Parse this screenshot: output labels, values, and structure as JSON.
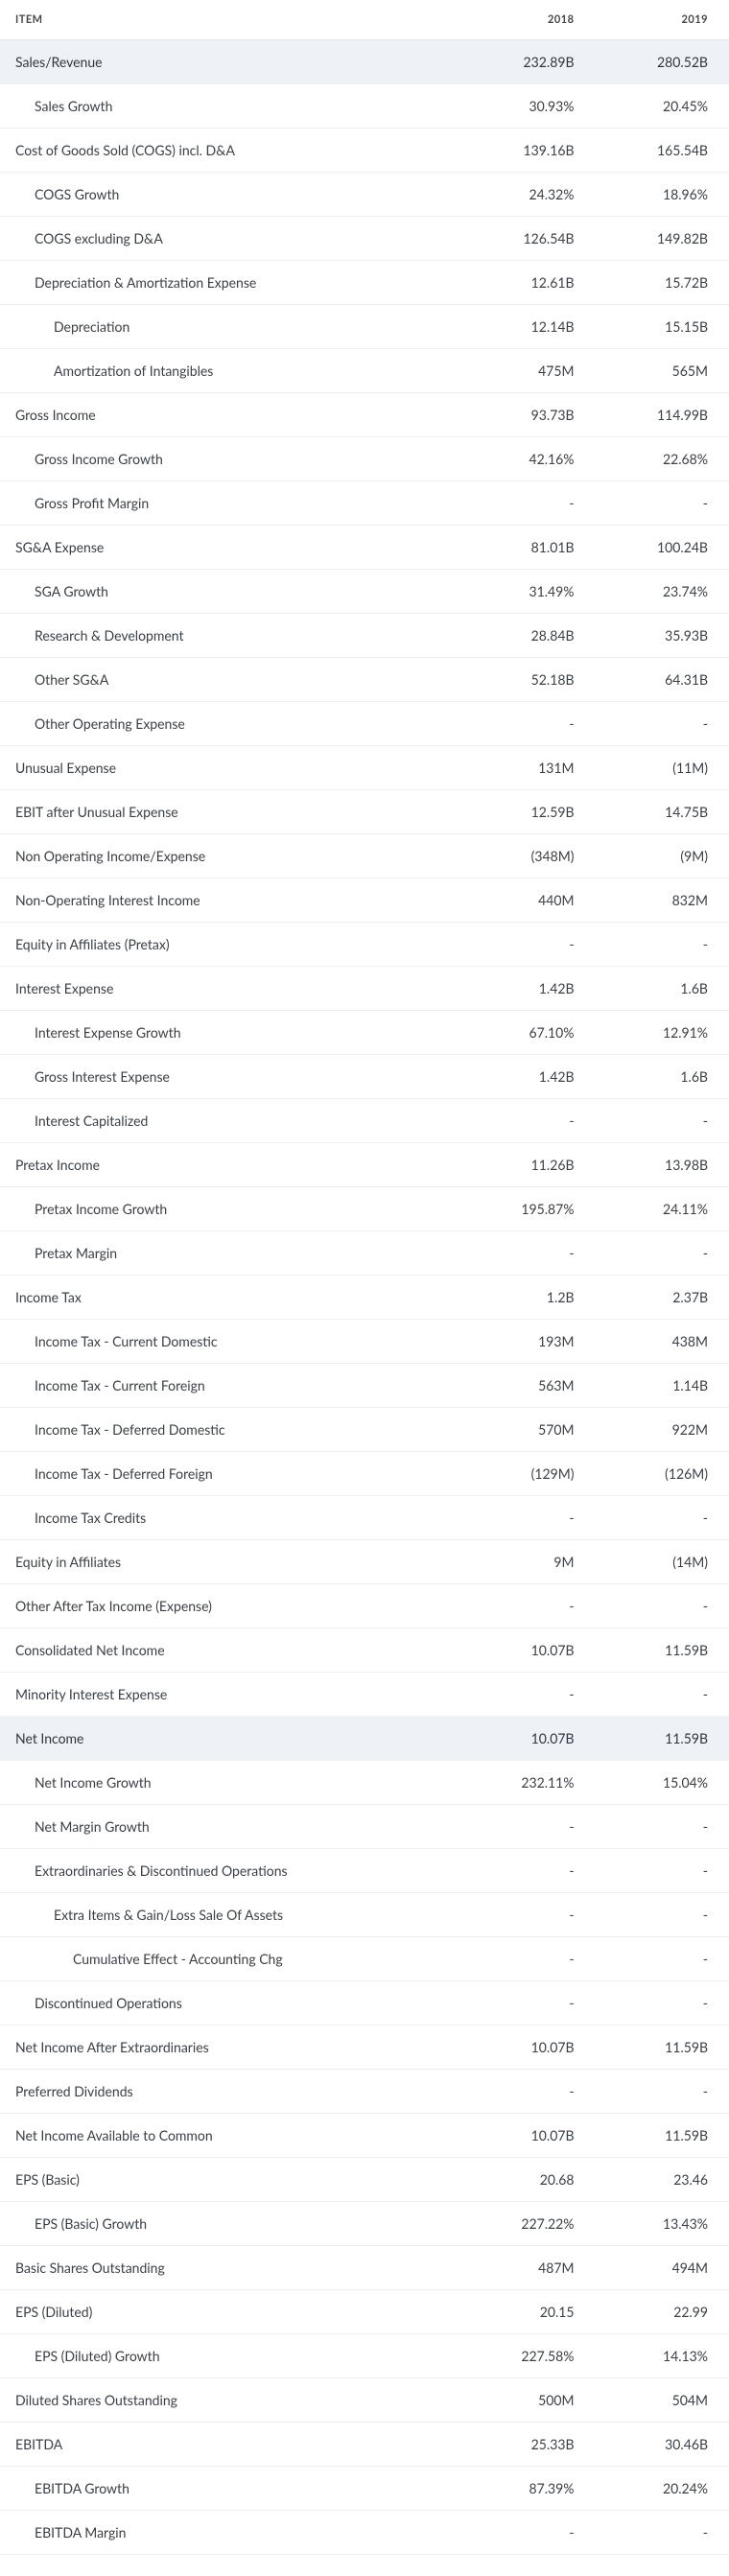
{
  "columns": [
    "ITEM",
    "2018",
    "2019"
  ],
  "colors": {
    "positive": "#2e8b57",
    "negative": "#c0392b",
    "highlight_bg": "#eef2f7",
    "border": "#eef1f4",
    "text": "#3a3f45"
  },
  "rows": [
    {
      "label": "Sales/Revenue",
      "indent": 0,
      "highlight": true,
      "v": [
        [
          "232.89B",
          ""
        ],
        [
          "280.52B",
          ""
        ]
      ]
    },
    {
      "label": "Sales Growth",
      "indent": 1,
      "v": [
        [
          "30.93%",
          "pos"
        ],
        [
          "20.45%",
          "pos"
        ]
      ]
    },
    {
      "label": "Cost of Goods Sold (COGS) incl. D&A",
      "indent": 0,
      "v": [
        [
          "139.16B",
          ""
        ],
        [
          "165.54B",
          ""
        ]
      ]
    },
    {
      "label": "COGS Growth",
      "indent": 1,
      "v": [
        [
          "24.32%",
          "pos"
        ],
        [
          "18.96%",
          "pos"
        ]
      ]
    },
    {
      "label": "COGS excluding D&A",
      "indent": 1,
      "v": [
        [
          "126.54B",
          ""
        ],
        [
          "149.82B",
          ""
        ]
      ]
    },
    {
      "label": "Depreciation & Amortization Expense",
      "indent": 1,
      "v": [
        [
          "12.61B",
          ""
        ],
        [
          "15.72B",
          ""
        ]
      ]
    },
    {
      "label": "Depreciation",
      "indent": 2,
      "v": [
        [
          "12.14B",
          ""
        ],
        [
          "15.15B",
          ""
        ]
      ]
    },
    {
      "label": "Amortization of Intangibles",
      "indent": 2,
      "v": [
        [
          "475M",
          ""
        ],
        [
          "565M",
          ""
        ]
      ]
    },
    {
      "label": "Gross Income",
      "indent": 0,
      "v": [
        [
          "93.73B",
          ""
        ],
        [
          "114.99B",
          ""
        ]
      ]
    },
    {
      "label": "Gross Income Growth",
      "indent": 1,
      "v": [
        [
          "42.16%",
          "pos"
        ],
        [
          "22.68%",
          "pos"
        ]
      ]
    },
    {
      "label": "Gross Profit Margin",
      "indent": 1,
      "v": [
        [
          "-",
          ""
        ],
        [
          "-",
          ""
        ]
      ]
    },
    {
      "label": "SG&A Expense",
      "indent": 0,
      "v": [
        [
          "81.01B",
          ""
        ],
        [
          "100.24B",
          ""
        ]
      ]
    },
    {
      "label": "SGA Growth",
      "indent": 1,
      "v": [
        [
          "31.49%",
          "pos"
        ],
        [
          "23.74%",
          "pos"
        ]
      ]
    },
    {
      "label": "Research & Development",
      "indent": 1,
      "v": [
        [
          "28.84B",
          ""
        ],
        [
          "35.93B",
          ""
        ]
      ]
    },
    {
      "label": "Other SG&A",
      "indent": 1,
      "v": [
        [
          "52.18B",
          ""
        ],
        [
          "64.31B",
          ""
        ]
      ]
    },
    {
      "label": "Other Operating Expense",
      "indent": 1,
      "v": [
        [
          "-",
          ""
        ],
        [
          "-",
          ""
        ]
      ]
    },
    {
      "label": "Unusual Expense",
      "indent": 0,
      "v": [
        [
          "131M",
          ""
        ],
        [
          "(11M)",
          "neg"
        ]
      ]
    },
    {
      "label": "EBIT after Unusual Expense",
      "indent": 0,
      "v": [
        [
          "12.59B",
          ""
        ],
        [
          "14.75B",
          ""
        ]
      ]
    },
    {
      "label": "Non Operating Income/Expense",
      "indent": 0,
      "v": [
        [
          "(348M)",
          "neg"
        ],
        [
          "(9M)",
          "neg"
        ]
      ]
    },
    {
      "label": "Non-Operating Interest Income",
      "indent": 0,
      "v": [
        [
          "440M",
          ""
        ],
        [
          "832M",
          ""
        ]
      ]
    },
    {
      "label": "Equity in Affiliates (Pretax)",
      "indent": 0,
      "v": [
        [
          "-",
          ""
        ],
        [
          "-",
          ""
        ]
      ]
    },
    {
      "label": "Interest Expense",
      "indent": 0,
      "v": [
        [
          "1.42B",
          ""
        ],
        [
          "1.6B",
          ""
        ]
      ]
    },
    {
      "label": "Interest Expense Growth",
      "indent": 1,
      "v": [
        [
          "67.10%",
          "pos"
        ],
        [
          "12.91%",
          "pos"
        ]
      ]
    },
    {
      "label": "Gross Interest Expense",
      "indent": 1,
      "v": [
        [
          "1.42B",
          ""
        ],
        [
          "1.6B",
          ""
        ]
      ]
    },
    {
      "label": "Interest Capitalized",
      "indent": 1,
      "v": [
        [
          "-",
          ""
        ],
        [
          "-",
          ""
        ]
      ]
    },
    {
      "label": "Pretax Income",
      "indent": 0,
      "v": [
        [
          "11.26B",
          ""
        ],
        [
          "13.98B",
          ""
        ]
      ]
    },
    {
      "label": "Pretax Income Growth",
      "indent": 1,
      "v": [
        [
          "195.87%",
          "pos"
        ],
        [
          "24.11%",
          "pos"
        ]
      ]
    },
    {
      "label": "Pretax Margin",
      "indent": 1,
      "v": [
        [
          "-",
          ""
        ],
        [
          "-",
          ""
        ]
      ]
    },
    {
      "label": "Income Tax",
      "indent": 0,
      "v": [
        [
          "1.2B",
          ""
        ],
        [
          "2.37B",
          ""
        ]
      ]
    },
    {
      "label": "Income Tax - Current Domestic",
      "indent": 1,
      "v": [
        [
          "193M",
          ""
        ],
        [
          "438M",
          ""
        ]
      ]
    },
    {
      "label": "Income Tax - Current Foreign",
      "indent": 1,
      "v": [
        [
          "563M",
          ""
        ],
        [
          "1.14B",
          ""
        ]
      ]
    },
    {
      "label": "Income Tax - Deferred Domestic",
      "indent": 1,
      "v": [
        [
          "570M",
          ""
        ],
        [
          "922M",
          ""
        ]
      ]
    },
    {
      "label": "Income Tax - Deferred Foreign",
      "indent": 1,
      "v": [
        [
          "(129M)",
          "neg"
        ],
        [
          "(126M)",
          "neg"
        ]
      ]
    },
    {
      "label": "Income Tax Credits",
      "indent": 1,
      "v": [
        [
          "-",
          ""
        ],
        [
          "-",
          ""
        ]
      ]
    },
    {
      "label": "Equity in Affiliates",
      "indent": 0,
      "v": [
        [
          "9M",
          ""
        ],
        [
          "(14M)",
          "neg"
        ]
      ]
    },
    {
      "label": "Other After Tax Income (Expense)",
      "indent": 0,
      "v": [
        [
          "-",
          ""
        ],
        [
          "-",
          ""
        ]
      ]
    },
    {
      "label": "Consolidated Net Income",
      "indent": 0,
      "v": [
        [
          "10.07B",
          ""
        ],
        [
          "11.59B",
          ""
        ]
      ]
    },
    {
      "label": "Minority Interest Expense",
      "indent": 0,
      "v": [
        [
          "-",
          ""
        ],
        [
          "-",
          ""
        ]
      ]
    },
    {
      "label": "Net Income",
      "indent": 0,
      "highlight": true,
      "v": [
        [
          "10.07B",
          ""
        ],
        [
          "11.59B",
          ""
        ]
      ]
    },
    {
      "label": "Net Income Growth",
      "indent": 1,
      "v": [
        [
          "232.11%",
          "pos"
        ],
        [
          "15.04%",
          "pos"
        ]
      ]
    },
    {
      "label": "Net Margin Growth",
      "indent": 1,
      "v": [
        [
          "-",
          ""
        ],
        [
          "-",
          ""
        ]
      ]
    },
    {
      "label": "Extraordinaries & Discontinued Operations",
      "indent": 1,
      "v": [
        [
          "-",
          ""
        ],
        [
          "-",
          ""
        ]
      ]
    },
    {
      "label": "Extra Items & Gain/Loss Sale Of Assets",
      "indent": 2,
      "v": [
        [
          "-",
          ""
        ],
        [
          "-",
          ""
        ]
      ]
    },
    {
      "label": "Cumulative Effect - Accounting Chg",
      "indent": 3,
      "v": [
        [
          "-",
          ""
        ],
        [
          "-",
          ""
        ]
      ]
    },
    {
      "label": "Discontinued Operations",
      "indent": 1,
      "v": [
        [
          "-",
          ""
        ],
        [
          "-",
          ""
        ]
      ]
    },
    {
      "label": "Net Income After Extraordinaries",
      "indent": 0,
      "v": [
        [
          "10.07B",
          ""
        ],
        [
          "11.59B",
          ""
        ]
      ]
    },
    {
      "label": "Preferred Dividends",
      "indent": 0,
      "v": [
        [
          "-",
          ""
        ],
        [
          "-",
          ""
        ]
      ]
    },
    {
      "label": "Net Income Available to Common",
      "indent": 0,
      "v": [
        [
          "10.07B",
          ""
        ],
        [
          "11.59B",
          ""
        ]
      ]
    },
    {
      "label": "EPS (Basic)",
      "indent": 0,
      "v": [
        [
          "20.68",
          ""
        ],
        [
          "23.46",
          ""
        ]
      ]
    },
    {
      "label": "EPS (Basic) Growth",
      "indent": 1,
      "v": [
        [
          "227.22%",
          "pos"
        ],
        [
          "13.43%",
          "pos"
        ]
      ]
    },
    {
      "label": "Basic Shares Outstanding",
      "indent": 0,
      "v": [
        [
          "487M",
          ""
        ],
        [
          "494M",
          ""
        ]
      ]
    },
    {
      "label": "EPS (Diluted)",
      "indent": 0,
      "v": [
        [
          "20.15",
          ""
        ],
        [
          "22.99",
          ""
        ]
      ]
    },
    {
      "label": "EPS (Diluted) Growth",
      "indent": 1,
      "v": [
        [
          "227.58%",
          "pos"
        ],
        [
          "14.13%",
          "pos"
        ]
      ]
    },
    {
      "label": "Diluted Shares Outstanding",
      "indent": 0,
      "v": [
        [
          "500M",
          ""
        ],
        [
          "504M",
          ""
        ]
      ]
    },
    {
      "label": "EBITDA",
      "indent": 0,
      "v": [
        [
          "25.33B",
          ""
        ],
        [
          "30.46B",
          ""
        ]
      ]
    },
    {
      "label": "EBITDA Growth",
      "indent": 1,
      "v": [
        [
          "87.39%",
          "pos"
        ],
        [
          "20.24%",
          "pos"
        ]
      ]
    },
    {
      "label": "EBITDA Margin",
      "indent": 1,
      "v": [
        [
          "-",
          ""
        ],
        [
          "-",
          ""
        ]
      ]
    }
  ]
}
